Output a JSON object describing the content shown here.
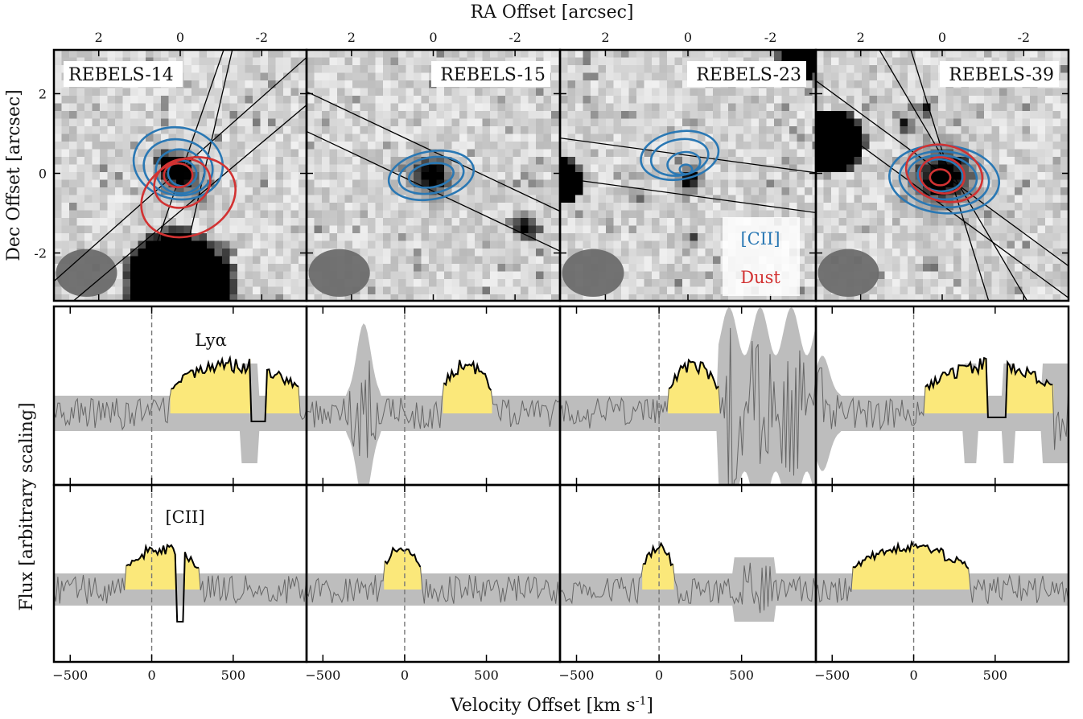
{
  "figure": {
    "top_xlabel": "RA Offset [arcsec]",
    "left_ylabel_top": "Dec Offset [arcsec]",
    "left_ylabel_bottom": "Flux [arbitrary scaling]",
    "bottom_xlabel": "Velocity Offset [km s",
    "bottom_xlabel_sup": "-1",
    "bottom_xlabel_end": "]",
    "line_labels": {
      "lya": "Lyα",
      "cii": "[CII]"
    },
    "legend": {
      "cii": "[CII]",
      "dust": "Dust"
    },
    "colors": {
      "cii": "#2a78b4",
      "dust": "#d23232",
      "fill": "#fbe87a",
      "noise": "#bdbdbd",
      "line": "#000000",
      "grey_line": "#666666"
    }
  },
  "chart_data": [
    {
      "type": "image",
      "panel": "cutouts",
      "sources": [
        "REBELS-14",
        "REBELS-15",
        "REBELS-23",
        "REBELS-39"
      ],
      "xlabel": "RA Offset [arcsec]",
      "ylabel": "Dec Offset [arcsec]",
      "x_ticks": [
        2,
        0,
        -2
      ],
      "y_ticks": [
        2,
        0,
        -2
      ],
      "xlim": [
        3.1,
        -3.1
      ],
      "ylim": [
        -3.2,
        3.1
      ],
      "contours": {
        "REBELS-14": {
          "cii": true,
          "dust": true
        },
        "REBELS-15": {
          "cii": true,
          "dust": false
        },
        "REBELS-23": {
          "cii": true,
          "dust": false
        },
        "REBELS-39": {
          "cii": true,
          "dust": true
        }
      }
    },
    {
      "type": "area",
      "panel": "lya-spectra",
      "label": "Lyα",
      "xlabel": "Velocity Offset [km s-1]",
      "ylabel": "Flux [arbitrary scaling]",
      "xlim": [
        -600,
        950
      ],
      "x_ticks": [
        -500,
        0,
        500
      ],
      "sources": [
        "REBELS-14",
        "REBELS-15",
        "REBELS-23",
        "REBELS-39"
      ],
      "emission_ranges": [
        [
          110,
          900
        ],
        [
          230,
          530
        ],
        [
          60,
          360
        ],
        [
          70,
          860
        ]
      ]
    },
    {
      "type": "area",
      "panel": "cii-spectra",
      "label": "[CII]",
      "xlabel": "Velocity Offset [km s-1]",
      "ylabel": "Flux [arbitrary scaling]",
      "xlim": [
        -600,
        950
      ],
      "x_ticks": [
        -500,
        0,
        500
      ],
      "sources": [
        "REBELS-14",
        "REBELS-15",
        "REBELS-23",
        "REBELS-39"
      ],
      "emission_ranges": [
        [
          -160,
          290
        ],
        [
          -130,
          100
        ],
        [
          -100,
          90
        ],
        [
          -380,
          340
        ]
      ]
    }
  ]
}
